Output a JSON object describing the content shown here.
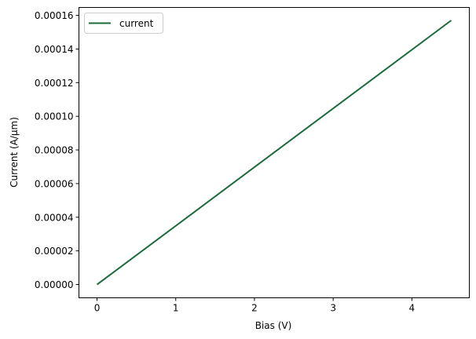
{
  "chart_data": {
    "type": "line",
    "title": "",
    "xlabel": "Bias (V)",
    "ylabel": "Current (A/μm)",
    "xlim": [
      -0.23,
      4.73
    ],
    "ylim": [
      -7.9e-06,
      0.0001647
    ],
    "xticks": [
      0,
      1,
      2,
      3,
      4
    ],
    "xtick_labels": [
      "0",
      "1",
      "2",
      "3",
      "4"
    ],
    "yticks": [
      0,
      2e-05,
      4e-05,
      6e-05,
      8e-05,
      0.0001,
      0.00012,
      0.00014,
      0.00016
    ],
    "ytick_labels": [
      "0.00000",
      "0.00002",
      "0.00004",
      "0.00006",
      "0.00008",
      "0.00010",
      "0.00012",
      "0.00014",
      "0.00016"
    ],
    "grid": false,
    "legend_position": "top-left",
    "series": [
      {
        "name": "current",
        "color": "#1a6b3a",
        "x": [
          0,
          4.5
        ],
        "y": [
          0,
          0.000157
        ]
      }
    ]
  }
}
